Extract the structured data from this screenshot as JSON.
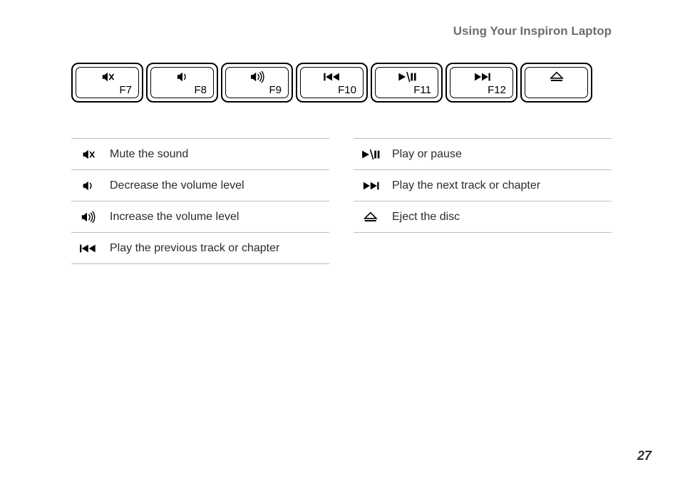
{
  "header": {
    "title": "Using Your Inspiron Laptop"
  },
  "page_number": "27",
  "colors": {
    "text": "#333333",
    "muted": "#6d6d6d",
    "border": "#bdbdbd",
    "key_stroke": "#000000",
    "bg": "#ffffff"
  },
  "keys": [
    {
      "icon": "mute",
      "label": "F7"
    },
    {
      "icon": "vol-down",
      "label": "F8"
    },
    {
      "icon": "vol-up",
      "label": "F9"
    },
    {
      "icon": "prev",
      "label": "F10"
    },
    {
      "icon": "play-pause",
      "label": "F11"
    },
    {
      "icon": "next",
      "label": "F12"
    },
    {
      "icon": "eject",
      "label": ""
    }
  ],
  "legend_left": [
    {
      "icon": "mute",
      "text": "Mute the sound"
    },
    {
      "icon": "vol-down",
      "text": "Decrease the volume level"
    },
    {
      "icon": "vol-up",
      "text": "Increase the volume level"
    },
    {
      "icon": "prev",
      "text": "Play the previous track or chapter"
    }
  ],
  "legend_right": [
    {
      "icon": "play-pause",
      "text": "Play or pause"
    },
    {
      "icon": "next",
      "text": "Play the next track or chapter"
    },
    {
      "icon": "eject",
      "text": "Eject the disc"
    }
  ]
}
